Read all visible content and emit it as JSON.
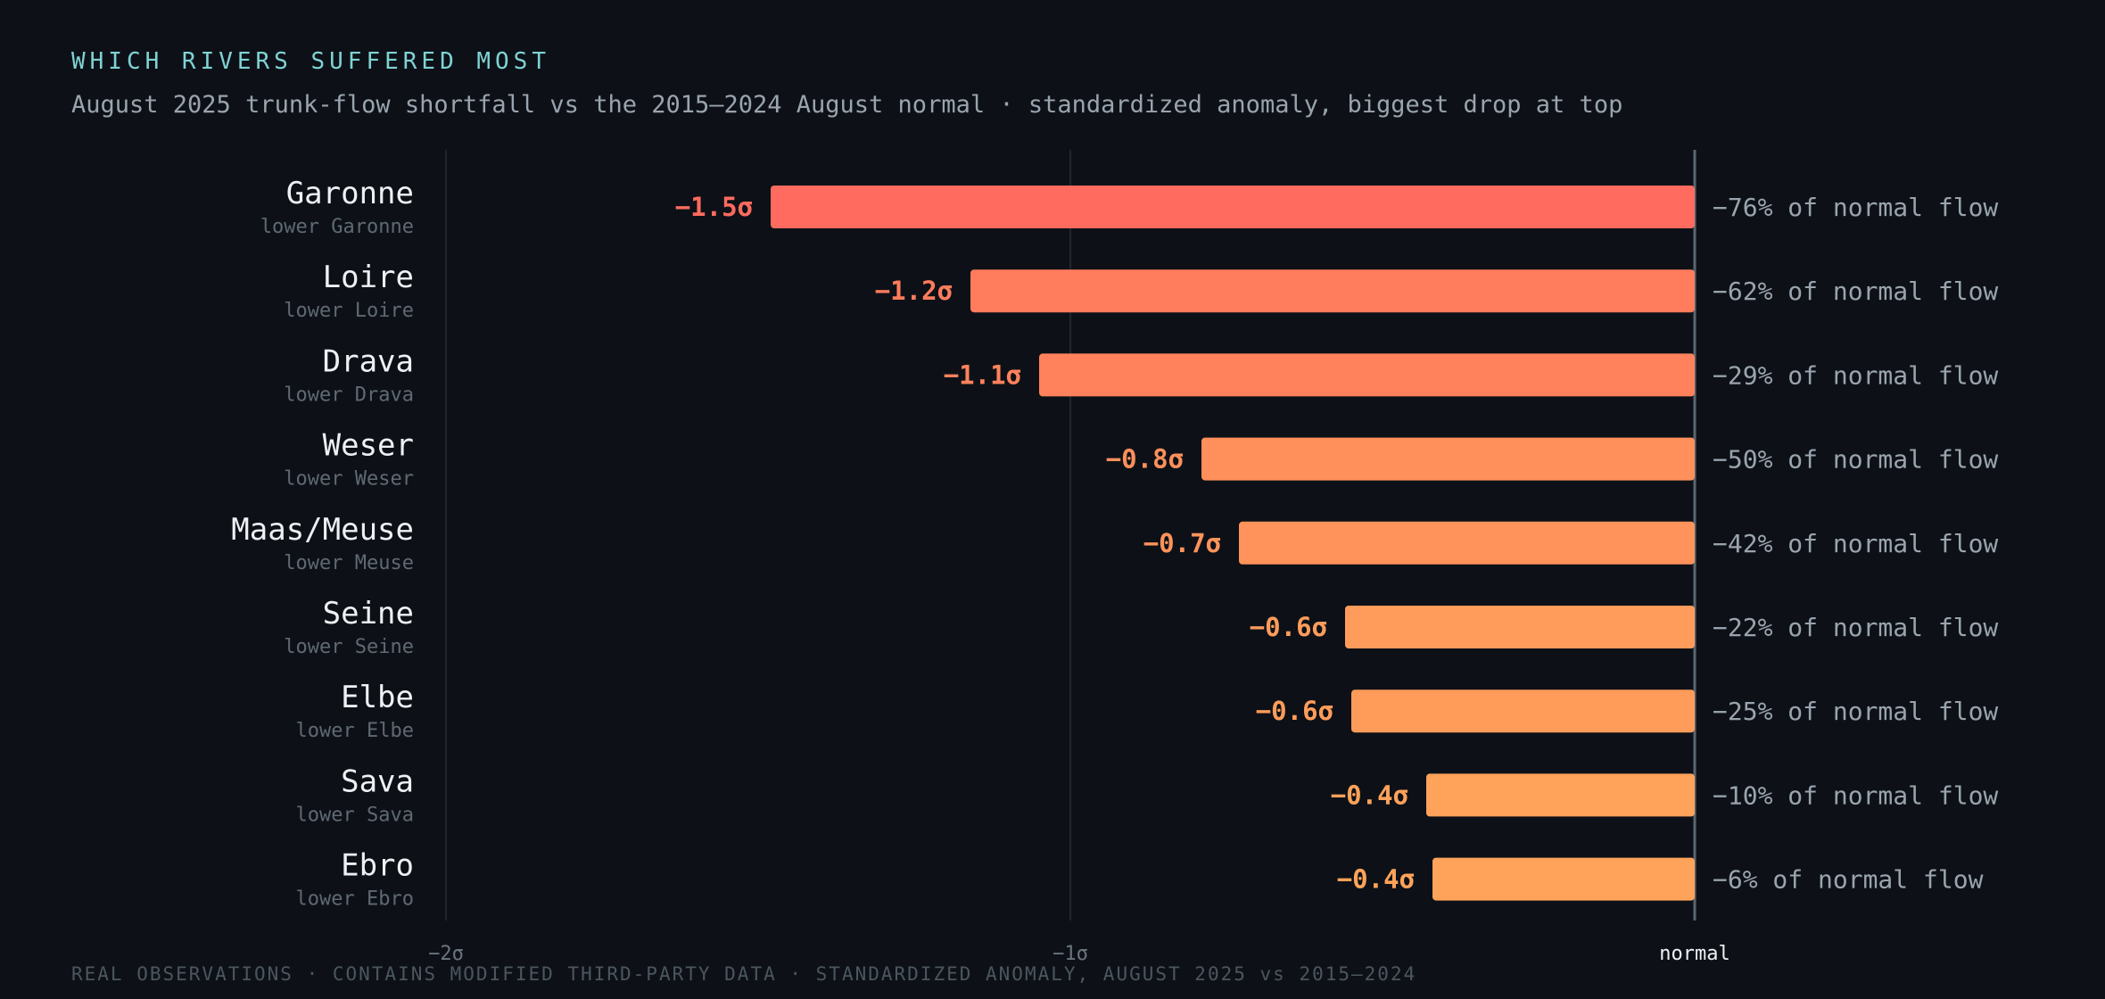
{
  "header": {
    "kicker": "WHICH RIVERS SUFFERED MOST",
    "subtitle": "August 2025 trunk‑flow shortfall vs the 2015–2024 August normal · standardized anomaly, biggest drop at top"
  },
  "footer": {
    "note": "REAL OBSERVATIONS · CONTAINS MODIFIED THIRD‑PARTY DATA · STANDARDIZED ANOMALY, AUGUST 2025 vs 2015–2024"
  },
  "colors": {
    "background": "#0d1117",
    "bar_strong": "#ff6b5e",
    "bar_weak": "#ffa35a",
    "baseline": "#5a6670",
    "grid": "#262e36"
  },
  "chart_data": {
    "type": "bar",
    "orientation": "horizontal",
    "sort": "biggest drop at top",
    "categories": [
      "Garonne",
      "Loire",
      "Drava",
      "Weser",
      "Maas/Meuse",
      "Seine",
      "Elbe",
      "Sava",
      "Ebro"
    ],
    "sublabels": [
      "lower Garonne",
      "lower Loire",
      "lower Drava",
      "lower Weser",
      "lower Meuse",
      "lower Seine",
      "lower Elbe",
      "lower Sava",
      "lower Ebro"
    ],
    "values": [
      -1.48,
      -1.16,
      -1.05,
      -0.79,
      -0.73,
      -0.56,
      -0.55,
      -0.43,
      -0.42
    ],
    "value_labels": [
      "−1.5σ",
      "−1.2σ",
      "−1.1σ",
      "−0.8σ",
      "−0.7σ",
      "−0.6σ",
      "−0.6σ",
      "−0.4σ",
      "−0.4σ"
    ],
    "percent_labels": [
      "−76% of normal flow",
      "−62% of normal flow",
      "−29% of normal flow",
      "−50% of normal flow",
      "−42% of normal flow",
      "−22% of normal flow",
      "−25% of normal flow",
      "−10% of normal flow",
      "−6% of normal flow"
    ],
    "xlim": [
      -2,
      0
    ],
    "ticks": [
      {
        "value": -2,
        "label": "−2σ"
      },
      {
        "value": -1,
        "label": "−1σ"
      },
      {
        "value": 0,
        "label": "normal"
      }
    ],
    "grid": true
  }
}
